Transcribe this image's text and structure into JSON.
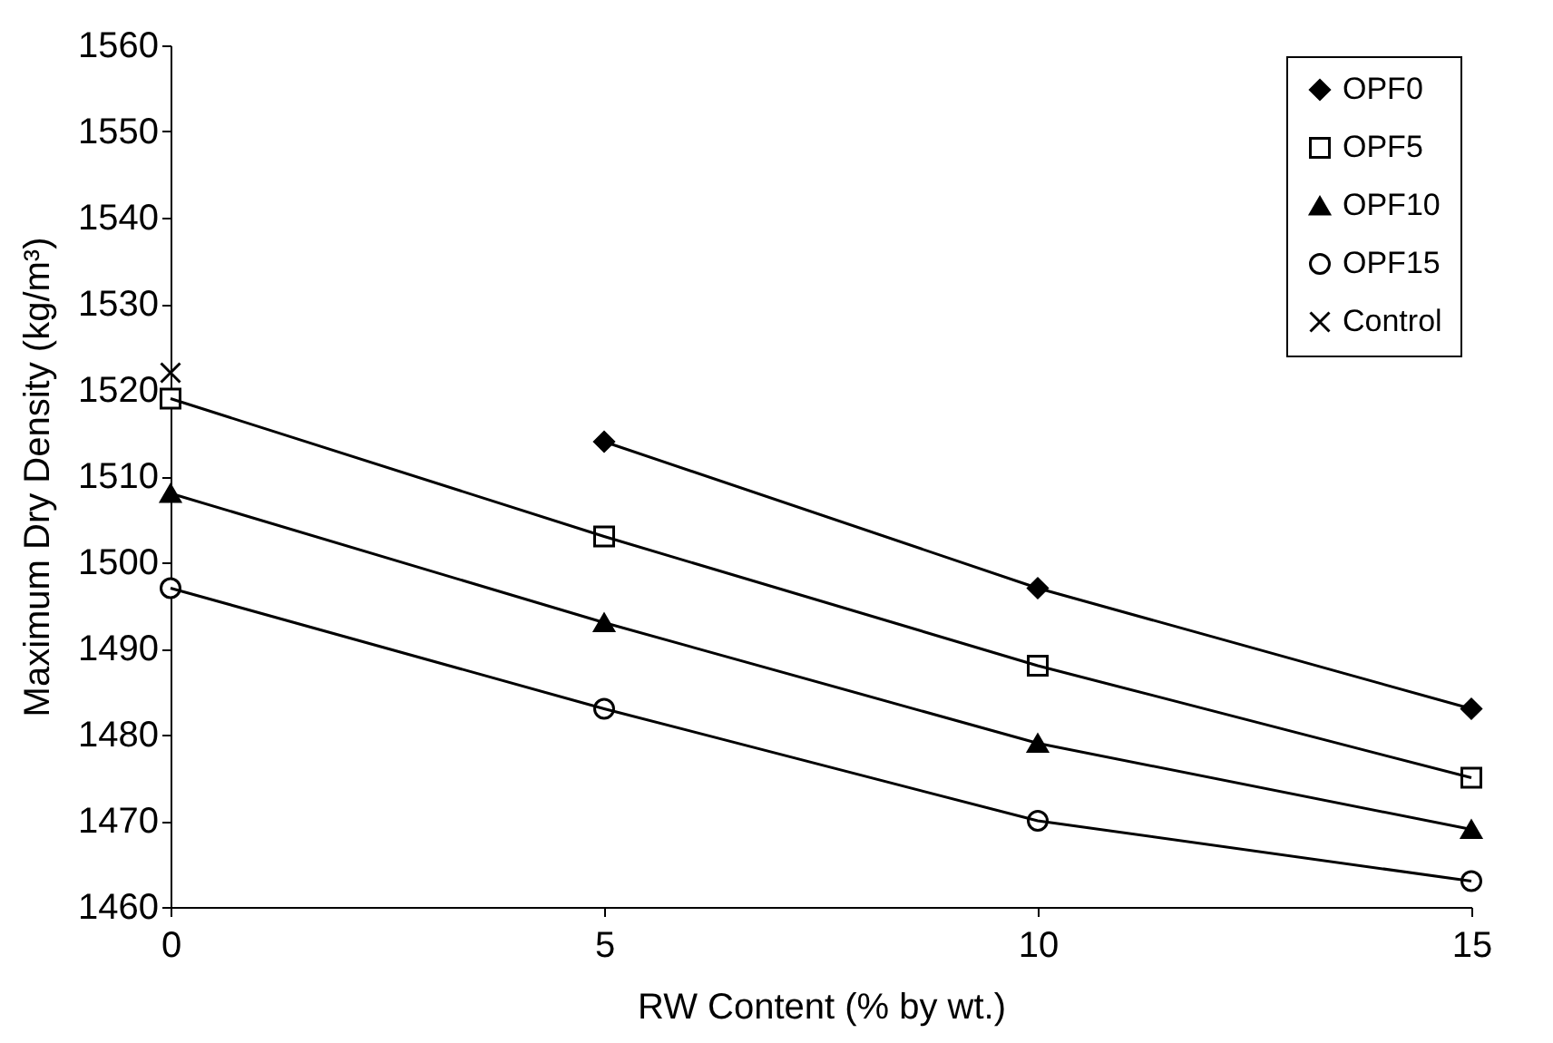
{
  "chart_data": {
    "type": "line",
    "xlabel": "RW Content (% by wt.)",
    "ylabel": "Maximum Dry Density (kg/m³)",
    "x": [
      0,
      5,
      10,
      15
    ],
    "xlim": [
      0,
      15
    ],
    "xticks": [
      0,
      5,
      10,
      15
    ],
    "ylim": [
      1460,
      1560
    ],
    "yticks": [
      1460,
      1470,
      1480,
      1490,
      1500,
      1510,
      1520,
      1530,
      1540,
      1550,
      1560
    ],
    "grid": false,
    "legend": "top right",
    "series": [
      {
        "name": "OPF0",
        "color": "#000000",
        "marker": "diamond",
        "values": [
          null,
          1514,
          1497,
          1483
        ]
      },
      {
        "name": "OPF5",
        "color": "#000000",
        "marker": "square",
        "values": [
          1519,
          1503,
          1488,
          1475
        ]
      },
      {
        "name": "OPF10",
        "color": "#000000",
        "marker": "triangle",
        "values": [
          1508,
          1493,
          1479,
          1469
        ]
      },
      {
        "name": "OPF15",
        "color": "#000000",
        "marker": "circle",
        "values": [
          1497,
          1483,
          1470,
          1463
        ]
      },
      {
        "name": "Control",
        "color": "#000000",
        "marker": "cross",
        "type": "scatter",
        "values": [
          1522,
          null,
          null,
          null
        ]
      }
    ]
  }
}
